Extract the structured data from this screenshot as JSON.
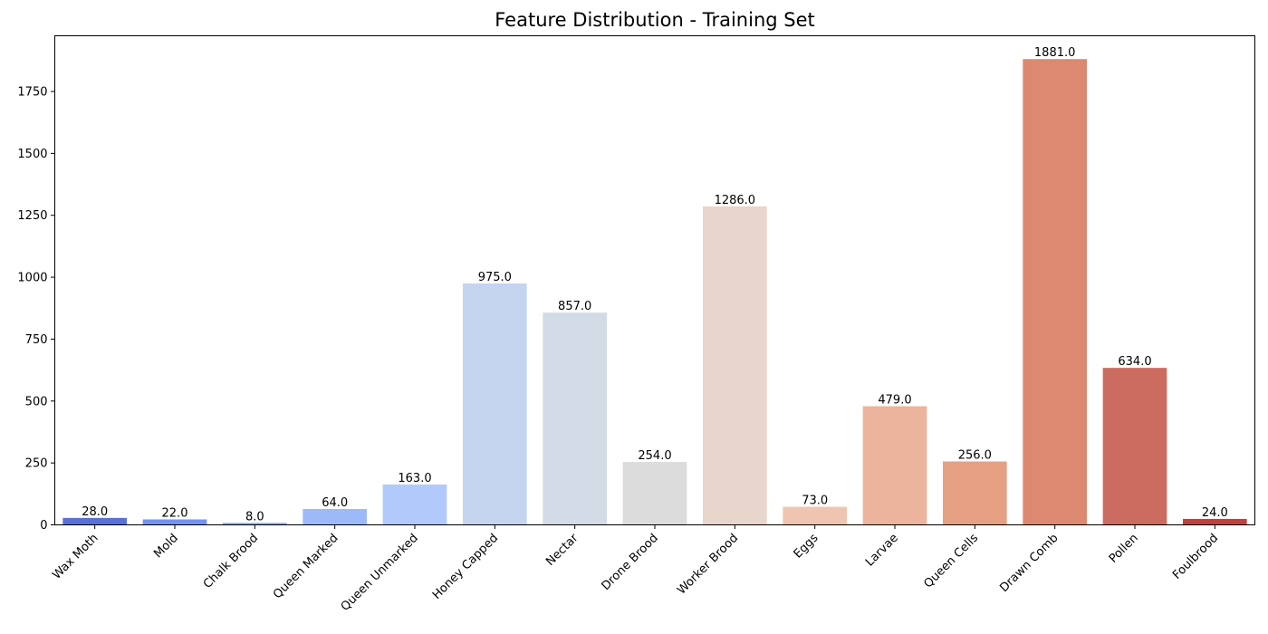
{
  "chart_data": {
    "type": "bar",
    "title": "Feature Distribution - Training Set",
    "xlabel": "",
    "ylabel": "",
    "categories": [
      "Wax Moth",
      "Mold",
      "Chalk Brood",
      "Queen Marked",
      "Queen Unmarked",
      "Honey Capped",
      "Nectar",
      "Drone Brood",
      "Worker Brood",
      "Eggs",
      "Larvae",
      "Queen Cells",
      "Drawn Comb",
      "Pollen",
      "Foulbrood"
    ],
    "values": [
      28.0,
      22.0,
      8.0,
      64.0,
      163.0,
      975.0,
      857.0,
      254.0,
      1286.0,
      73.0,
      479.0,
      256.0,
      1881.0,
      634.0,
      24.0
    ],
    "data_labels": [
      "28.0",
      "22.0",
      "8.0",
      "64.0",
      "163.0",
      "975.0",
      "857.0",
      "254.0",
      "1286.0",
      "73.0",
      "479.0",
      "256.0",
      "1881.0",
      "634.0",
      "24.0"
    ],
    "colors": [
      "#5a6fd8",
      "#7592f0",
      "#8aa8f8",
      "#9db9fa",
      "#b1c9fb",
      "#c5d5f0",
      "#d3dbe6",
      "#dcdcdc",
      "#e8d5cb",
      "#efc4b1",
      "#ecb49c",
      "#e5a084",
      "#dd8871",
      "#cc6b5f",
      "#c1403d"
    ],
    "ylim": [
      0,
      1975
    ],
    "yticks": [
      0,
      250,
      500,
      750,
      1000,
      1250,
      1500,
      1750
    ],
    "ytick_labels": [
      "0",
      "250",
      "500",
      "750",
      "1000",
      "1250",
      "1500",
      "1750"
    ],
    "grid": false,
    "legend": "none"
  }
}
